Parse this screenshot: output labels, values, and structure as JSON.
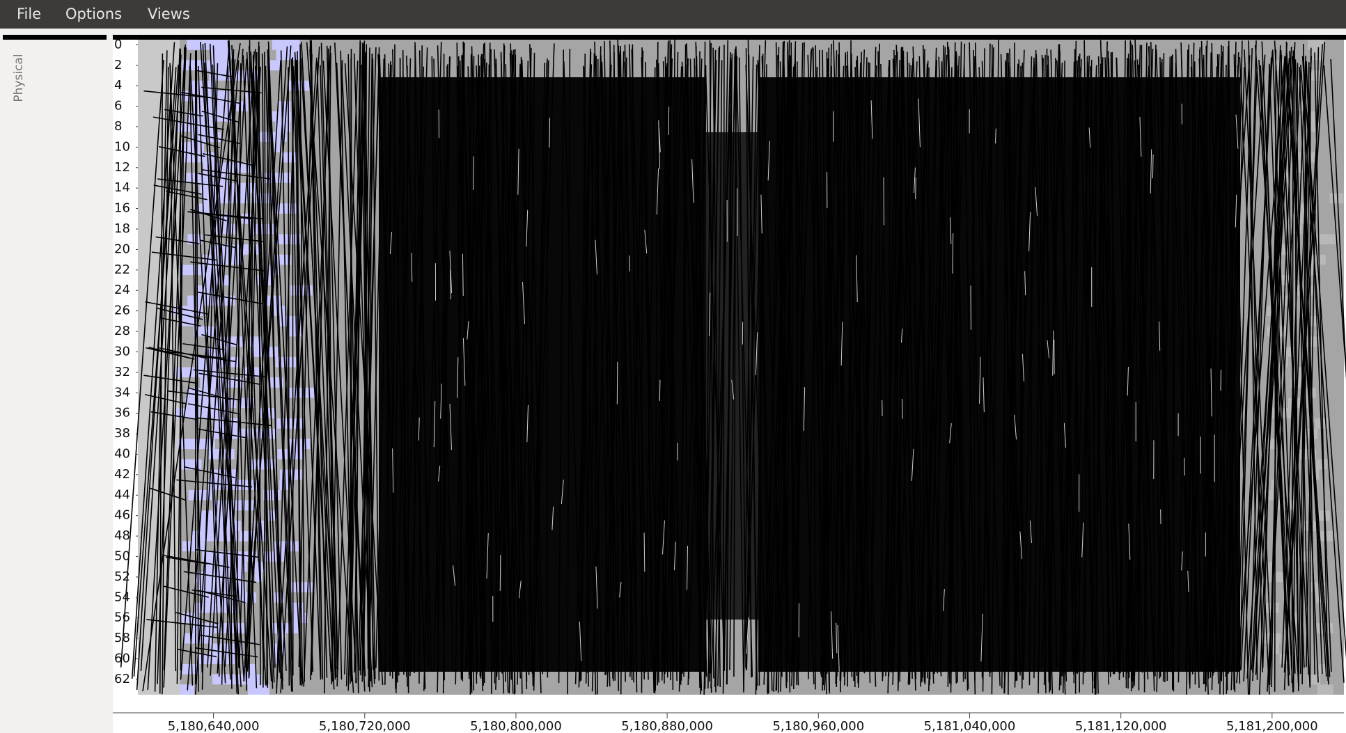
{
  "menu": [
    "File",
    "Options",
    "Views"
  ],
  "sidebar": {
    "label": "Physical"
  },
  "chart_data": {
    "type": "timeline",
    "ylim": [
      -0.5,
      63.5
    ],
    "yticks": [
      0,
      2,
      4,
      6,
      8,
      10,
      12,
      14,
      16,
      18,
      20,
      22,
      24,
      26,
      28,
      30,
      32,
      34,
      36,
      38,
      40,
      42,
      44,
      46,
      48,
      50,
      52,
      54,
      56,
      58,
      60,
      62
    ],
    "xlim": [
      5180600000,
      5181238000
    ],
    "xticks": [
      {
        "value": 5180640000,
        "label": "5,180,640,000"
      },
      {
        "value": 5180720000,
        "label": "5,180,720,000"
      },
      {
        "value": 5180800000,
        "label": "5,180,800,000"
      },
      {
        "value": 5180880000,
        "label": "5,180,880,000"
      },
      {
        "value": 5180960000,
        "label": "5,180,960,000"
      },
      {
        "value": 5181040000,
        "label": "5,181,040,000"
      },
      {
        "value": 5181120000,
        "label": "5,181,120,000"
      },
      {
        "value": 5181200000,
        "label": "5,181,200,000"
      }
    ]
  }
}
